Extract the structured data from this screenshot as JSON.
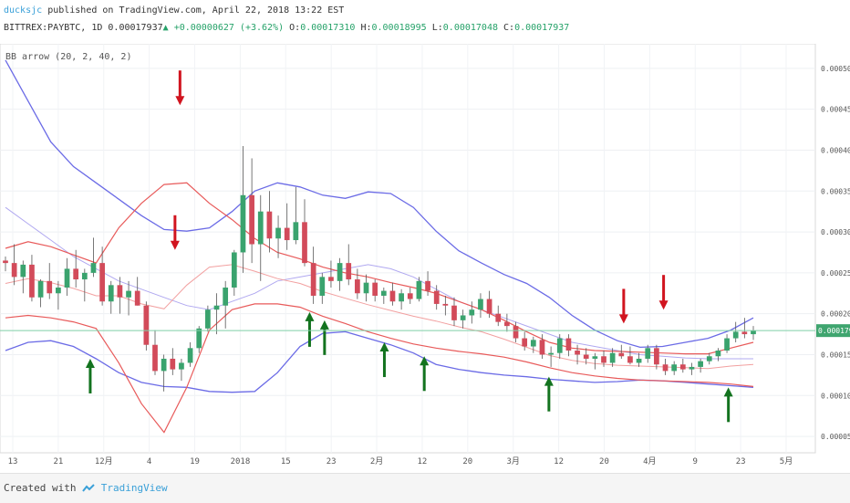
{
  "header": {
    "author": "ducksjc",
    "published": "published on TradingView.com, April 22, 2018 13:22 EST",
    "symbol": "BITTREX:PAYBTC, 1D",
    "last": "0.00017937",
    "arrow": "▲",
    "change": "+0.00000627 (+3.62%)",
    "o_label": "O:",
    "o_value": "0.00017310",
    "h_label": "H:",
    "h_value": "0.00018995",
    "l_label": "L:",
    "l_value": "0.00017048",
    "c_label": "C:",
    "c_value": "0.00017937"
  },
  "indicator_label": "BB arrow (20, 2, 40, 2)",
  "footer": {
    "created_with": "Created with",
    "brand": "TradingView"
  },
  "colors": {
    "up": "#3aa36e",
    "down": "#d24b5a",
    "band_outer": "#6b6be6",
    "band_inner": "#e85a5a",
    "basis_outer": "#b0a8f0",
    "basis_inner": "#f2a0a0",
    "buy_arrow": "#13731f",
    "sell_arrow": "#d1141f",
    "last_price_bg": "#3fa56f"
  },
  "chart_data": {
    "type": "candlestick",
    "y_range": [
      3e-05,
      0.00053
    ],
    "y_ticks": [
      "0.00005000",
      "0.00010000",
      "0.00015000",
      "0.00020000",
      "0.00025000",
      "0.00030000",
      "0.00035000",
      "0.00040000",
      "0.00045000",
      "0.00050000"
    ],
    "x_ticks": [
      "13",
      "21",
      "12月",
      "4",
      "19",
      "2018",
      "15",
      "23",
      "2月",
      "12",
      "20",
      "3月",
      "12",
      "20",
      "4月",
      "9",
      "23",
      "5月"
    ],
    "last_price": "0.00017937",
    "series_bb_outer": {
      "upper": [
        0.00051,
        0.00046,
        0.00041,
        0.00038,
        0.00036,
        0.00034,
        0.00032,
        0.000303,
        0.000301,
        0.000305,
        0.000325,
        0.00035,
        0.00036,
        0.000355,
        0.000345,
        0.000341,
        0.000349,
        0.000347,
        0.00033,
        0.000301,
        0.000277,
        0.000262,
        0.000248,
        0.000237,
        0.00022,
        0.000198,
        0.00018,
        0.000167,
        0.000159,
        0.00016,
        0.000165,
        0.00017,
        0.00018,
        0.000195
      ],
      "lower": [
        0.000155,
        0.000165,
        0.000167,
        0.00016,
        0.000145,
        0.000128,
        0.000116,
        0.000111,
        0.00011,
        0.000105,
        0.000104,
        0.000105,
        0.000128,
        0.00016,
        0.000176,
        0.000178,
        0.00017,
        0.000162,
        0.000152,
        0.000138,
        0.000132,
        0.000128,
        0.000125,
        0.000123,
        0.00012,
        0.000118,
        0.000116,
        0.000117,
        0.000119,
        0.000118,
        0.000116,
        0.000114,
        0.000112,
        0.00011
      ],
      "basis": [
        0.00033,
        0.00031,
        0.00029,
        0.00027,
        0.000255,
        0.00024,
        0.00023,
        0.00022,
        0.00021,
        0.000205,
        0.000215,
        0.000225,
        0.00024,
        0.000245,
        0.00025,
        0.000255,
        0.00026,
        0.000255,
        0.000245,
        0.00023,
        0.000215,
        0.000205,
        0.000195,
        0.000185,
        0.000175,
        0.000165,
        0.00016,
        0.000155,
        0.00015,
        0.000148,
        0.000146,
        0.000145,
        0.000145,
        0.000145
      ]
    },
    "series_bb_inner": {
      "upper": [
        0.00028,
        0.000288,
        0.000282,
        0.000272,
        0.000262,
        0.000305,
        0.000335,
        0.000358,
        0.00036,
        0.000335,
        0.000315,
        0.000292,
        0.000275,
        0.000267,
        0.000257,
        0.00025,
        0.000245,
        0.000238,
        0.000232,
        0.000225,
        0.000215,
        0.000205,
        0.000192,
        0.000178,
        0.000165,
        0.000158,
        0.000155,
        0.000154,
        0.000153,
        0.000152,
        0.000151,
        0.000151,
        0.000158,
        0.000165
      ],
      "lower": [
        0.000195,
        0.000198,
        0.000195,
        0.00019,
        0.000182,
        0.00014,
        9e-05,
        5.5e-05,
        0.00011,
        0.00018,
        0.000205,
        0.000212,
        0.000212,
        0.000208,
        0.000197,
        0.000188,
        0.000178,
        0.00017,
        0.000163,
        0.000158,
        0.000154,
        0.000151,
        0.000147,
        0.000141,
        0.000134,
        0.000128,
        0.000124,
        0.000121,
        0.000119,
        0.000118,
        0.000117,
        0.000116,
        0.000114,
        0.000111
      ],
      "basis": [
        0.000237,
        0.000243,
        0.000238,
        0.000231,
        0.000222,
        0.000222,
        0.000212,
        0.000206,
        0.000235,
        0.000257,
        0.00026,
        0.000252,
        0.000243,
        0.000237,
        0.000227,
        0.000219,
        0.000211,
        0.000204,
        0.000197,
        0.000191,
        0.000184,
        0.000178,
        0.000169,
        0.000159,
        0.000149,
        0.000143,
        0.000139,
        0.000137,
        0.000136,
        0.000135,
        0.000134,
        0.000133,
        0.000136,
        0.000138
      ]
    },
    "candles": [
      [
        0.000265,
        0.00027,
        0.000252,
        0.000262
      ],
      [
        0.000262,
        0.000285,
        0.000235,
        0.000245
      ],
      [
        0.000245,
        0.000265,
        0.000225,
        0.00026
      ],
      [
        0.00026,
        0.000272,
        0.000215,
        0.00022
      ],
      [
        0.00022,
        0.000242,
        0.000208,
        0.00024
      ],
      [
        0.00024,
        0.000262,
        0.000218,
        0.000225
      ],
      [
        0.000225,
        0.00024,
        0.000205,
        0.000232
      ],
      [
        0.000232,
        0.000268,
        0.000222,
        0.000255
      ],
      [
        0.000255,
        0.000278,
        0.000232,
        0.000242
      ],
      [
        0.000242,
        0.000255,
        0.000215,
        0.00025
      ],
      [
        0.00025,
        0.000293,
        0.000245,
        0.000262
      ],
      [
        0.000262,
        0.000282,
        0.00021,
        0.000215
      ],
      [
        0.000215,
        0.00024,
        0.0002,
        0.000235
      ],
      [
        0.000235,
        0.000245,
        0.0002,
        0.00022
      ],
      [
        0.00022,
        0.00024,
        0.000198,
        0.000228
      ],
      [
        0.000228,
        0.000245,
        0.00021,
        0.00021
      ],
      [
        0.00021,
        0.000215,
        0.000155,
        0.000162
      ],
      [
        0.000162,
        0.00018,
        0.000125,
        0.00013
      ],
      [
        0.00013,
        0.00015,
        0.000105,
        0.000145
      ],
      [
        0.000145,
        0.000158,
        0.000125,
        0.000132
      ],
      [
        0.000132,
        0.000145,
        0.000118,
        0.00014
      ],
      [
        0.00014,
        0.000165,
        0.000135,
        0.000158
      ],
      [
        0.000158,
        0.000185,
        0.000152,
        0.000182
      ],
      [
        0.000182,
        0.00021,
        0.000178,
        0.000205
      ],
      [
        0.000205,
        0.000225,
        0.000175,
        0.00021
      ],
      [
        0.00021,
        0.00024,
        0.000182,
        0.000232
      ],
      [
        0.000232,
        0.000278,
        0.000222,
        0.000275
      ],
      [
        0.000275,
        0.000405,
        0.00025,
        0.000345
      ],
      [
        0.000345,
        0.00039,
        0.000262,
        0.000285
      ],
      [
        0.000285,
        0.000345,
        0.00024,
        0.000325
      ],
      [
        0.000325,
        0.00035,
        0.000275,
        0.000292
      ],
      [
        0.000292,
        0.00032,
        0.000268,
        0.000305
      ],
      [
        0.000305,
        0.000335,
        0.000278,
        0.00029
      ],
      [
        0.00029,
        0.000355,
        0.000285,
        0.000312
      ],
      [
        0.000312,
        0.00034,
        0.000258,
        0.000262
      ],
      [
        0.000262,
        0.000282,
        0.000212,
        0.000222
      ],
      [
        0.000222,
        0.00025,
        0.000212,
        0.000245
      ],
      [
        0.000245,
        0.000265,
        0.000232,
        0.00024
      ],
      [
        0.00024,
        0.000268,
        0.000228,
        0.000262
      ],
      [
        0.000262,
        0.000285,
        0.000235,
        0.000242
      ],
      [
        0.000242,
        0.000255,
        0.000218,
        0.000225
      ],
      [
        0.000225,
        0.000248,
        0.000215,
        0.000238
      ],
      [
        0.000238,
        0.000242,
        0.000215,
        0.000222
      ],
      [
        0.000222,
        0.000232,
        0.000212,
        0.000228
      ],
      [
        0.000228,
        0.000238,
        0.00021,
        0.000215
      ],
      [
        0.000215,
        0.00023,
        0.000205,
        0.000225
      ],
      [
        0.000225,
        0.000232,
        0.000212,
        0.000218
      ],
      [
        0.000218,
        0.000245,
        0.000215,
        0.00024
      ],
      [
        0.00024,
        0.000252,
        0.000222,
        0.000228
      ],
      [
        0.000228,
        0.000235,
        0.000205,
        0.000212
      ],
      [
        0.000212,
        0.000222,
        0.000198,
        0.00021
      ],
      [
        0.00021,
        0.00022,
        0.000185,
        0.000192
      ],
      [
        0.000192,
        0.000205,
        0.000182,
        0.000198
      ],
      [
        0.000198,
        0.000215,
        0.000188,
        0.000205
      ],
      [
        0.000205,
        0.000225,
        0.000195,
        0.000218
      ],
      [
        0.000218,
        0.000228,
        0.000195,
        0.0002
      ],
      [
        0.0002,
        0.00021,
        0.000185,
        0.00019
      ],
      [
        0.00019,
        0.0002,
        0.000178,
        0.000185
      ],
      [
        0.000185,
        0.00019,
        0.000165,
        0.00017
      ],
      [
        0.00017,
        0.000178,
        0.000155,
        0.00016
      ],
      [
        0.00016,
        0.000172,
        0.000152,
        0.000168
      ],
      [
        0.000168,
        0.000175,
        0.000145,
        0.00015
      ],
      [
        0.00015,
        0.00016,
        0.000135,
        0.000152
      ],
      [
        0.000152,
        0.000175,
        0.000145,
        0.00017
      ],
      [
        0.00017,
        0.000175,
        0.000148,
        0.000155
      ],
      [
        0.000155,
        0.000162,
        0.000138,
        0.00015
      ],
      [
        0.00015,
        0.000158,
        0.000138,
        0.000145
      ],
      [
        0.000145,
        0.000152,
        0.000132,
        0.000148
      ],
      [
        0.000148,
        0.000155,
        0.000135,
        0.00014
      ],
      [
        0.00014,
        0.000158,
        0.000135,
        0.000152
      ],
      [
        0.000152,
        0.000162,
        0.000145,
        0.000148
      ],
      [
        0.000148,
        0.00016,
        0.000138,
        0.00014
      ],
      [
        0.00014,
        0.000152,
        0.000135,
        0.000145
      ],
      [
        0.000145,
        0.000162,
        0.00014,
        0.000158
      ],
      [
        0.000158,
        0.000162,
        0.000132,
        0.000138
      ],
      [
        0.000138,
        0.000145,
        0.000125,
        0.00013
      ],
      [
        0.00013,
        0.000142,
        0.000125,
        0.000138
      ],
      [
        0.000138,
        0.000145,
        0.000128,
        0.000132
      ],
      [
        0.000132,
        0.00014,
        0.000125,
        0.000135
      ],
      [
        0.000135,
        0.000145,
        0.000128,
        0.000142
      ],
      [
        0.000142,
        0.000152,
        0.000138,
        0.000148
      ],
      [
        0.000148,
        0.000158,
        0.000142,
        0.000155
      ],
      [
        0.000155,
        0.000175,
        0.000152,
        0.00017
      ],
      [
        0.00017,
        0.00019,
        0.000165,
        0.000178
      ],
      [
        0.000178,
        0.000195,
        0.00017,
        0.000175
      ],
      [
        0.000175,
        0.000185,
        0.000168,
        0.000179
      ]
    ],
    "buy_arrows": [
      [
        17,
        0.000145
      ],
      [
        61,
        0.000202
      ],
      [
        64,
        0.000192
      ],
      [
        76,
        0.000165
      ],
      [
        84,
        0.000148
      ],
      [
        109,
        0.000123
      ],
      [
        145,
        0.00011
      ]
    ],
    "sell_arrows": [
      [
        35,
        0.000455
      ],
      [
        34,
        0.000278
      ],
      [
        124,
        0.000188
      ],
      [
        132,
        0.000205
      ]
    ]
  }
}
